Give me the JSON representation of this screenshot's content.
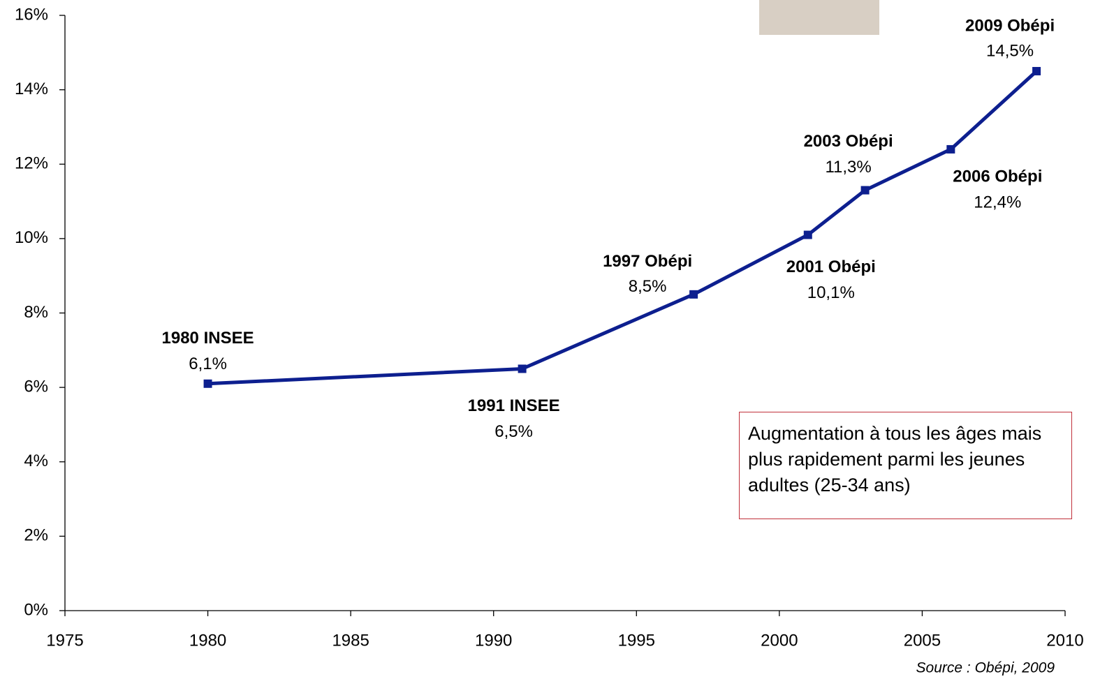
{
  "chart_data": {
    "type": "line",
    "x": [
      1980,
      1991,
      1997,
      2001,
      2003,
      2006,
      2009
    ],
    "series": [
      {
        "color": "#0d1f8f",
        "values": [
          6.1,
          6.5,
          8.5,
          10.1,
          11.3,
          12.4,
          14.5
        ],
        "value_labels": [
          "6,1%",
          "6,5%",
          "8,5%",
          "10,1%",
          "11,3%",
          "12,4%",
          "14,5%"
        ],
        "point_labels": [
          "1980 INSEE",
          "1991 INSEE",
          "1997 Obépi",
          "2001 Obépi",
          "2003 Obépi",
          "2006 Obépi",
          "2009 Obépi"
        ]
      }
    ],
    "xlim": [
      1975,
      2010
    ],
    "xticks": [
      1975,
      1980,
      1985,
      1990,
      1995,
      2000,
      2005,
      2010
    ],
    "ylim": [
      0,
      16
    ],
    "yticks": [
      {
        "value": 0,
        "label": "0%"
      },
      {
        "value": 2,
        "label": "2%"
      },
      {
        "value": 4,
        "label": "4%"
      },
      {
        "value": 6,
        "label": "6%"
      },
      {
        "value": 8,
        "label": "8%"
      },
      {
        "value": 10,
        "label": "10%"
      },
      {
        "value": 12,
        "label": "12%"
      },
      {
        "value": 14,
        "label": "14%"
      },
      {
        "value": 16,
        "label": "16%"
      }
    ],
    "annotation": "Augmentation à tous les âges mais plus rapidement parmi les jeunes adultes (25-34 ans)",
    "source": "Source : Obépi, 2009"
  }
}
